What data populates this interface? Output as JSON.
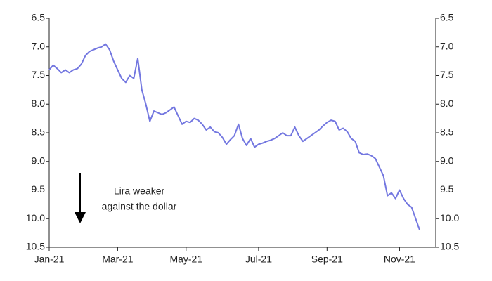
{
  "chart_data": {
    "type": "line",
    "categories": [
      "Jan-21",
      null,
      null,
      null,
      null,
      null,
      null,
      null,
      null,
      null,
      null,
      null,
      null,
      null,
      null,
      null,
      null,
      "Mar-21",
      null,
      null,
      null,
      null,
      null,
      null,
      null,
      null,
      null,
      null,
      null,
      null,
      null,
      null,
      null,
      null,
      "May-21",
      null,
      null,
      null,
      null,
      null,
      null,
      null,
      null,
      null,
      null,
      null,
      null,
      null,
      null,
      null,
      null,
      null,
      "Jul-21",
      null,
      null,
      null,
      null,
      null,
      null,
      null,
      null,
      null,
      null,
      null,
      null,
      null,
      null,
      null,
      null,
      "Sep-21",
      null,
      null,
      null,
      null,
      null,
      null,
      null,
      null,
      null,
      null,
      null,
      null,
      null,
      null,
      null,
      null,
      null,
      "Nov-21",
      null,
      null,
      null,
      null,
      null
    ],
    "values": [
      7.4,
      7.32,
      7.38,
      7.45,
      7.4,
      7.45,
      7.4,
      7.38,
      7.3,
      7.15,
      7.08,
      7.05,
      7.02,
      7.0,
      6.95,
      7.05,
      7.25,
      7.4,
      7.55,
      7.62,
      7.5,
      7.55,
      7.2,
      7.75,
      8.0,
      8.3,
      8.12,
      8.15,
      8.18,
      8.15,
      8.1,
      8.05,
      8.2,
      8.35,
      8.3,
      8.32,
      8.25,
      8.28,
      8.35,
      8.45,
      8.4,
      8.48,
      8.5,
      8.58,
      8.7,
      8.62,
      8.55,
      8.35,
      8.6,
      8.72,
      8.6,
      8.75,
      8.7,
      8.68,
      8.65,
      8.63,
      8.6,
      8.55,
      8.5,
      8.55,
      8.55,
      8.4,
      8.55,
      8.65,
      8.6,
      8.55,
      8.5,
      8.45,
      8.38,
      8.32,
      8.28,
      8.3,
      8.45,
      8.42,
      8.48,
      8.6,
      8.65,
      8.85,
      8.88,
      8.87,
      8.9,
      8.95,
      9.1,
      9.25,
      9.6,
      9.55,
      9.65,
      9.5,
      9.65,
      9.75,
      9.8,
      10.0,
      10.2
    ],
    "color": "#7377e0",
    "ylim": [
      6.5,
      10.5
    ],
    "y_inverted": true,
    "yticks": [
      6.5,
      {
        "value": 7,
        "label": "7.0"
      },
      7.5,
      {
        "value": 8,
        "label": "8.0"
      },
      8.5,
      {
        "value": 9,
        "label": "9.0"
      },
      9.5,
      {
        "value": 10,
        "label": "10.0"
      },
      10.5
    ],
    "annotation": [
      "Lira weaker",
      "against the dollar"
    ]
  }
}
